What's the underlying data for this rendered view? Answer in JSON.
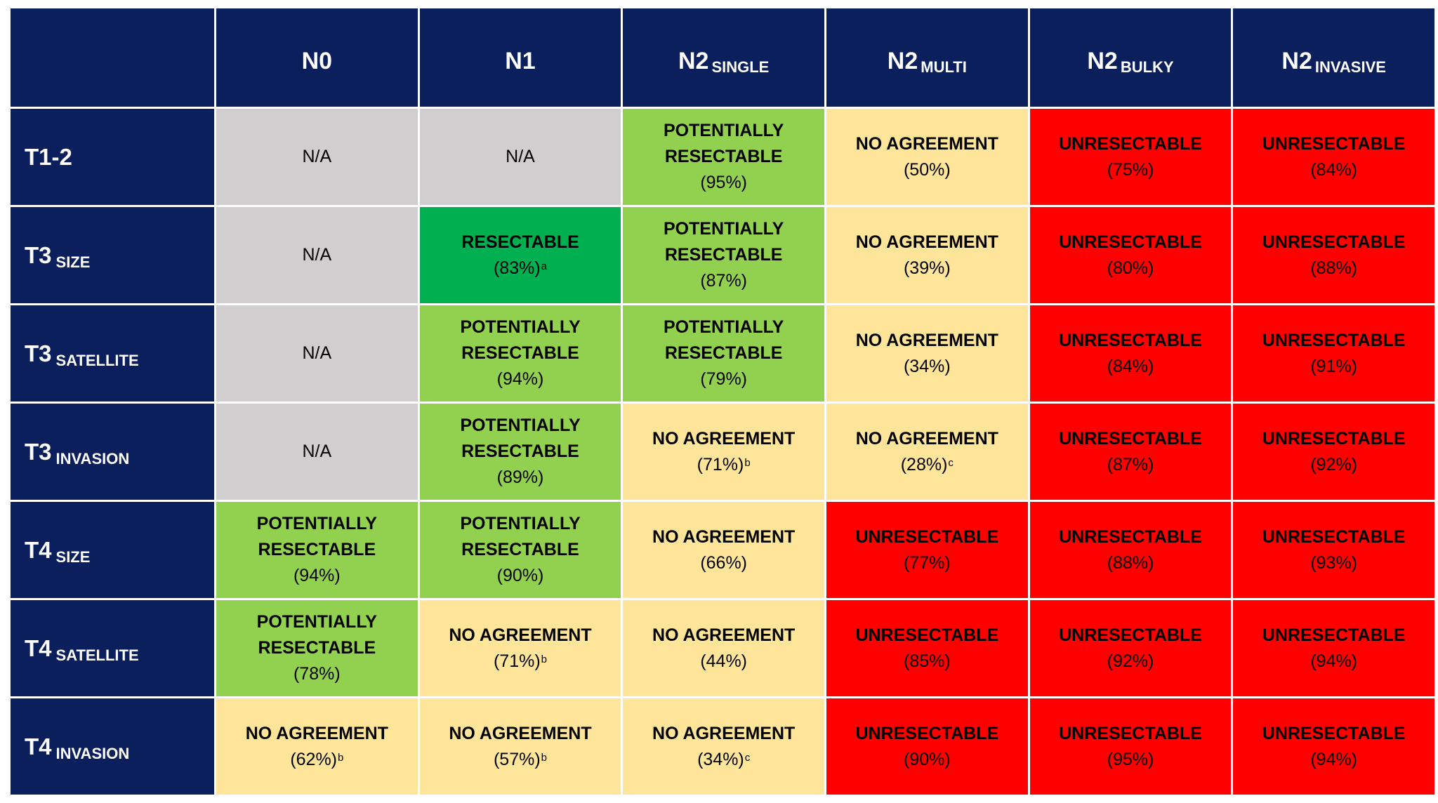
{
  "chart_data": {
    "type": "table",
    "columns": [
      {
        "main": "N0",
        "sub": ""
      },
      {
        "main": "N1",
        "sub": ""
      },
      {
        "main": "N2",
        "sub": "SINGLE"
      },
      {
        "main": "N2",
        "sub": "MULTI"
      },
      {
        "main": "N2",
        "sub": "BULKY"
      },
      {
        "main": "N2",
        "sub": "INVASIVE"
      }
    ],
    "rows": [
      {
        "main": "T1-2",
        "sub": ""
      },
      {
        "main": "T3",
        "sub": "SIZE"
      },
      {
        "main": "T3",
        "sub": "SATELLITE"
      },
      {
        "main": "T3",
        "sub": "INVASION"
      },
      {
        "main": "T4",
        "sub": "SIZE"
      },
      {
        "main": "T4",
        "sub": "SATELLITE"
      },
      {
        "main": "T4",
        "sub": "INVASION"
      }
    ],
    "categories": {
      "NA": {
        "label": "N/A",
        "color": "#d0cece"
      },
      "RES": {
        "label": "RESECTABLE",
        "color": "#00b050"
      },
      "POT": {
        "label": "POTENTIALLY RESECTABLE",
        "color": "#92d050"
      },
      "NOAG": {
        "label": "NO AGREEMENT",
        "color": "#fee599"
      },
      "UNRES": {
        "label": "UNRESECTABLE",
        "color": "#ff0000"
      }
    },
    "header_color": "#0b1f5c",
    "cells": [
      [
        {
          "cat": "NA",
          "pct": "",
          "note": ""
        },
        {
          "cat": "NA",
          "pct": "",
          "note": ""
        },
        {
          "cat": "POT",
          "pct": "(95%)",
          "note": ""
        },
        {
          "cat": "NOAG",
          "pct": "(50%)",
          "note": ""
        },
        {
          "cat": "UNRES",
          "pct": "(75%)",
          "note": ""
        },
        {
          "cat": "UNRES",
          "pct": "(84%)",
          "note": ""
        }
      ],
      [
        {
          "cat": "NA",
          "pct": "",
          "note": ""
        },
        {
          "cat": "RES",
          "pct": "(83%)",
          "note": "a"
        },
        {
          "cat": "POT",
          "pct": "(87%)",
          "note": ""
        },
        {
          "cat": "NOAG",
          "pct": "(39%)",
          "note": ""
        },
        {
          "cat": "UNRES",
          "pct": "(80%)",
          "note": ""
        },
        {
          "cat": "UNRES",
          "pct": "(88%)",
          "note": ""
        }
      ],
      [
        {
          "cat": "NA",
          "pct": "",
          "note": ""
        },
        {
          "cat": "POT",
          "pct": "(94%)",
          "note": ""
        },
        {
          "cat": "POT",
          "pct": "(79%)",
          "note": ""
        },
        {
          "cat": "NOAG",
          "pct": "(34%)",
          "note": ""
        },
        {
          "cat": "UNRES",
          "pct": "(84%)",
          "note": ""
        },
        {
          "cat": "UNRES",
          "pct": "(91%)",
          "note": ""
        }
      ],
      [
        {
          "cat": "NA",
          "pct": "",
          "note": ""
        },
        {
          "cat": "POT",
          "pct": "(89%)",
          "note": ""
        },
        {
          "cat": "NOAG",
          "pct": "(71%)",
          "note": "b"
        },
        {
          "cat": "NOAG",
          "pct": "(28%)",
          "note": "c"
        },
        {
          "cat": "UNRES",
          "pct": "(87%)",
          "note": ""
        },
        {
          "cat": "UNRES",
          "pct": "(92%)",
          "note": ""
        }
      ],
      [
        {
          "cat": "POT",
          "pct": "(94%)",
          "note": ""
        },
        {
          "cat": "POT",
          "pct": "(90%)",
          "note": ""
        },
        {
          "cat": "NOAG",
          "pct": "(66%)",
          "note": ""
        },
        {
          "cat": "UNRES",
          "pct": "(77%)",
          "note": ""
        },
        {
          "cat": "UNRES",
          "pct": "(88%)",
          "note": ""
        },
        {
          "cat": "UNRES",
          "pct": "(93%)",
          "note": ""
        }
      ],
      [
        {
          "cat": "POT",
          "pct": "(78%)",
          "note": ""
        },
        {
          "cat": "NOAG",
          "pct": "(71%)",
          "note": "b"
        },
        {
          "cat": "NOAG",
          "pct": "(44%)",
          "note": ""
        },
        {
          "cat": "UNRES",
          "pct": "(85%)",
          "note": ""
        },
        {
          "cat": "UNRES",
          "pct": "(92%)",
          "note": ""
        },
        {
          "cat": "UNRES",
          "pct": "(94%)",
          "note": ""
        }
      ],
      [
        {
          "cat": "NOAG",
          "pct": "(62%)",
          "note": "b"
        },
        {
          "cat": "NOAG",
          "pct": "(57%)",
          "note": "b"
        },
        {
          "cat": "NOAG",
          "pct": "(34%)",
          "note": "c"
        },
        {
          "cat": "UNRES",
          "pct": "(90%)",
          "note": ""
        },
        {
          "cat": "UNRES",
          "pct": "(95%)",
          "note": ""
        },
        {
          "cat": "UNRES",
          "pct": "(94%)",
          "note": ""
        }
      ]
    ]
  }
}
